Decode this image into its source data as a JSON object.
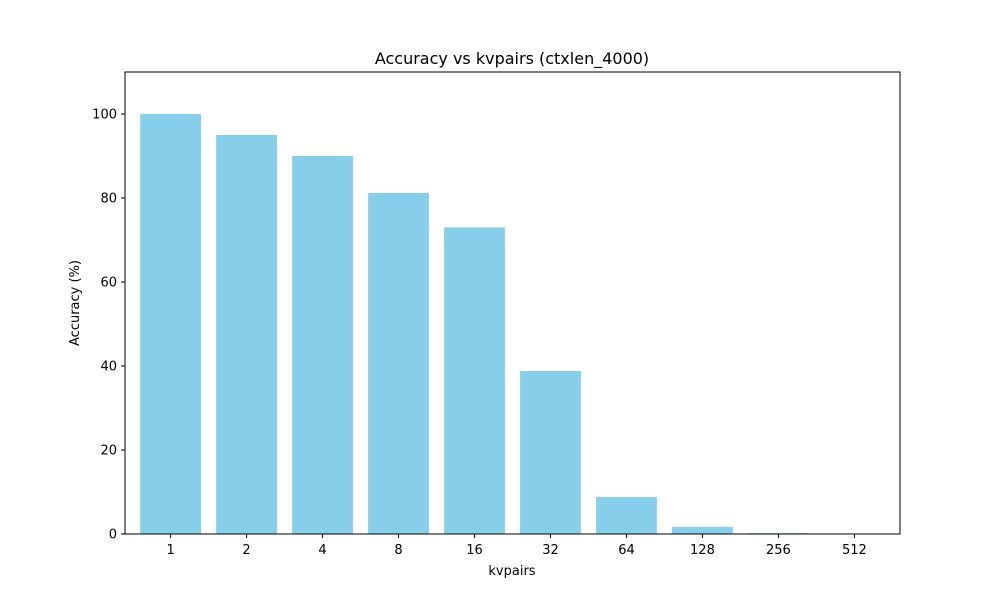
{
  "chart_data": {
    "type": "bar",
    "title": "Accuracy vs kvpairs (ctxlen_4000)",
    "xlabel": "kvpairs",
    "ylabel": "Accuracy (%)",
    "categories": [
      "1",
      "2",
      "4",
      "8",
      "16",
      "32",
      "64",
      "128",
      "256",
      "512"
    ],
    "values": [
      100,
      95,
      90,
      81.2,
      73,
      38.8,
      8.8,
      1.7,
      0.2,
      0
    ],
    "ylim": [
      0,
      110
    ],
    "yticks": [
      0,
      20,
      40,
      60,
      80,
      100
    ],
    "grid": false,
    "bar_color": "#87ceeb"
  }
}
